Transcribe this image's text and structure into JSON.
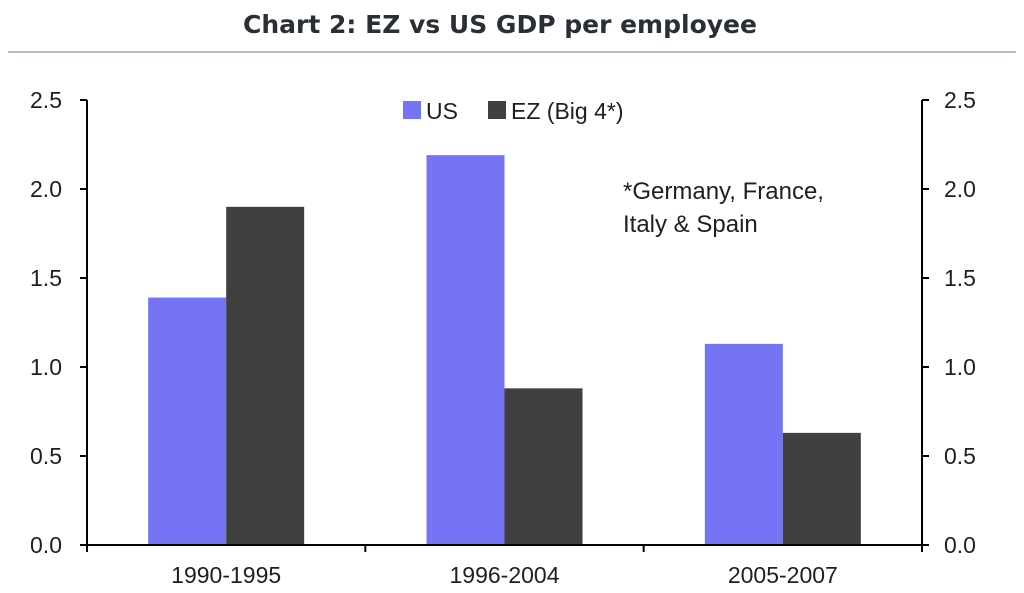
{
  "chart_data": {
    "type": "bar",
    "title": "Chart 2: EZ vs US GDP per employee",
    "categories": [
      "1990-1995",
      "1996-2004",
      "2005-2007"
    ],
    "series": [
      {
        "name": "US",
        "values": [
          1.39,
          2.19,
          1.13
        ],
        "color": "#7474f4"
      },
      {
        "name": "EZ (Big 4*)",
        "values": [
          1.9,
          0.88,
          0.63
        ],
        "color": "#404040"
      }
    ],
    "ylim": [
      0,
      2.5
    ],
    "y_ticks": [
      "0.0",
      "0.5",
      "1.0",
      "1.5",
      "2.0",
      "2.5"
    ],
    "y_axis_sides": "left and right",
    "grid": false,
    "legend_position": "top-center",
    "annotation": [
      "*Germany, France,",
      "Italy & Spain"
    ]
  }
}
